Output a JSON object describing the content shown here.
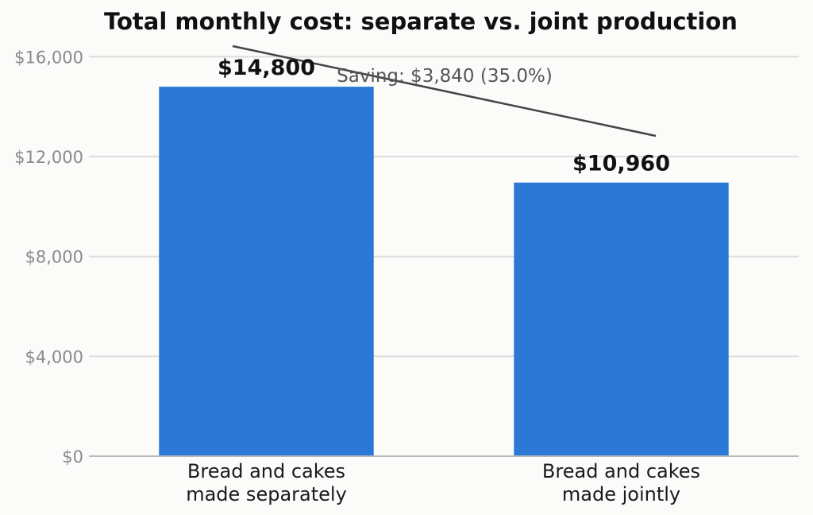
{
  "chart_data": {
    "type": "bar",
    "title": "Total monthly cost: separate vs. joint production",
    "xlabel": "",
    "ylabel": "",
    "categories": [
      [
        "Bread and cakes",
        "made separately"
      ],
      [
        "Bread and cakes",
        "made jointly"
      ]
    ],
    "values": [
      14800,
      10960
    ],
    "value_labels": [
      "$14,800",
      "$10,960"
    ],
    "ylim": [
      0,
      17000
    ],
    "yticks": [
      0,
      4000,
      8000,
      12000,
      16000
    ],
    "ytick_labels": [
      "$0",
      "$4,000",
      "$8,000",
      "$12,000",
      "$16,000"
    ],
    "grid": true,
    "bar_color": "#2b78d6",
    "annotation": "Saving: $3,840 (35.0%)"
  }
}
